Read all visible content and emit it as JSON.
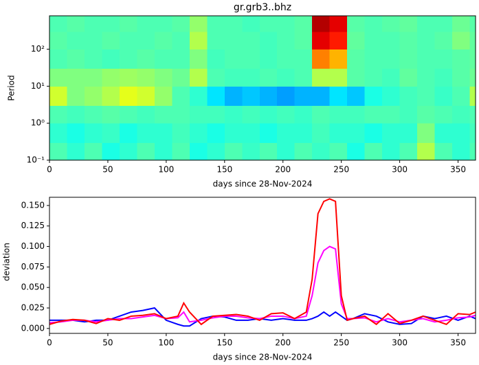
{
  "chart_data": [
    {
      "type": "heatmap",
      "title": "gr.grb3..bhz",
      "xlabel": "days since 28-Nov-2024",
      "ylabel": "Period",
      "colormap": "jet",
      "ylog": true,
      "x": [
        0,
        15,
        30,
        45,
        60,
        75,
        90,
        105,
        120,
        135,
        150,
        165,
        180,
        195,
        210,
        225,
        240,
        255,
        270,
        285,
        300,
        315,
        330,
        345,
        360,
        365
      ],
      "y": [
        0.1,
        0.3,
        1,
        3,
        10,
        30,
        100,
        300,
        800
      ],
      "values": [
        [
          0.45,
          0.42,
          0.45,
          0.4,
          0.42,
          0.45,
          0.42,
          0.45,
          0.4,
          0.42,
          0.45,
          0.43,
          0.45,
          0.42,
          0.45,
          0.43,
          0.45,
          0.4,
          0.45,
          0.42,
          0.45,
          0.55,
          0.45,
          0.42,
          0.45
        ],
        [
          0.42,
          0.4,
          0.42,
          0.43,
          0.4,
          0.42,
          0.42,
          0.44,
          0.42,
          0.4,
          0.42,
          0.42,
          0.4,
          0.42,
          0.42,
          0.44,
          0.42,
          0.42,
          0.4,
          0.42,
          0.42,
          0.5,
          0.42,
          0.42,
          0.44
        ],
        [
          0.45,
          0.44,
          0.45,
          0.46,
          0.45,
          0.44,
          0.45,
          0.45,
          0.44,
          0.44,
          0.43,
          0.44,
          0.43,
          0.44,
          0.43,
          0.45,
          0.44,
          0.44,
          0.45,
          0.45,
          0.44,
          0.46,
          0.45,
          0.44,
          0.45
        ],
        [
          0.58,
          0.5,
          0.52,
          0.55,
          0.6,
          0.58,
          0.52,
          0.45,
          0.42,
          0.35,
          0.3,
          0.32,
          0.3,
          0.28,
          0.3,
          0.3,
          0.35,
          0.32,
          0.4,
          0.42,
          0.44,
          0.45,
          0.43,
          0.45,
          0.55
        ],
        [
          0.5,
          0.5,
          0.5,
          0.52,
          0.53,
          0.52,
          0.5,
          0.48,
          0.55,
          0.45,
          0.44,
          0.44,
          0.45,
          0.44,
          0.45,
          0.55,
          0.55,
          0.46,
          0.45,
          0.44,
          0.47,
          0.45,
          0.44,
          0.46,
          0.48
        ],
        [
          0.45,
          0.46,
          0.45,
          0.44,
          0.45,
          0.46,
          0.45,
          0.45,
          0.5,
          0.44,
          0.45,
          0.45,
          0.44,
          0.45,
          0.45,
          0.75,
          0.7,
          0.46,
          0.45,
          0.45,
          0.46,
          0.45,
          0.45,
          0.46,
          0.47
        ],
        [
          0.46,
          0.45,
          0.45,
          0.46,
          0.45,
          0.45,
          0.46,
          0.45,
          0.55,
          0.45,
          0.45,
          0.45,
          0.44,
          0.45,
          0.46,
          0.9,
          0.85,
          0.47,
          0.45,
          0.45,
          0.46,
          0.45,
          0.46,
          0.5,
          0.47
        ],
        [
          0.45,
          0.46,
          0.45,
          0.45,
          0.46,
          0.45,
          0.45,
          0.46,
          0.52,
          0.45,
          0.45,
          0.44,
          0.45,
          0.45,
          0.46,
          0.95,
          0.9,
          0.46,
          0.45,
          0.46,
          0.47,
          0.45,
          0.45,
          0.48,
          0.46
        ]
      ],
      "xlim": [
        0,
        365
      ],
      "xticks": [
        0,
        50,
        100,
        150,
        200,
        250,
        300,
        350
      ],
      "ylim": [
        0.1,
        800
      ],
      "yticks": [
        {
          "value": 0.1,
          "label": "10⁻¹"
        },
        {
          "value": 1,
          "label": "10⁰"
        },
        {
          "value": 10,
          "label": "10¹"
        },
        {
          "value": 100,
          "label": "10²"
        }
      ]
    },
    {
      "type": "line",
      "xlabel": "days since 28-Nov-2024",
      "ylabel": "deviation",
      "x": [
        0,
        10,
        20,
        30,
        40,
        50,
        60,
        70,
        80,
        90,
        100,
        110,
        115,
        120,
        130,
        140,
        150,
        160,
        170,
        180,
        190,
        200,
        210,
        220,
        225,
        230,
        235,
        240,
        245,
        250,
        255,
        260,
        270,
        280,
        290,
        300,
        310,
        320,
        330,
        340,
        350,
        360,
        365
      ],
      "series": [
        {
          "color": "#0000ff",
          "values": [
            0.01,
            0.01,
            0.01,
            0.008,
            0.01,
            0.01,
            0.015,
            0.02,
            0.022,
            0.025,
            0.01,
            0.005,
            0.003,
            0.003,
            0.012,
            0.015,
            0.014,
            0.01,
            0.01,
            0.012,
            0.01,
            0.012,
            0.01,
            0.01,
            0.012,
            0.015,
            0.02,
            0.015,
            0.02,
            0.015,
            0.01,
            0.012,
            0.018,
            0.015,
            0.008,
            0.005,
            0.006,
            0.015,
            0.012,
            0.015,
            0.01,
            0.015,
            0.012
          ]
        },
        {
          "color": "#ff00ff",
          "values": [
            0.007,
            0.008,
            0.01,
            0.01,
            0.008,
            0.01,
            0.012,
            0.012,
            0.014,
            0.016,
            0.012,
            0.013,
            0.02,
            0.008,
            0.01,
            0.013,
            0.015,
            0.015,
            0.013,
            0.012,
            0.015,
            0.015,
            0.012,
            0.015,
            0.04,
            0.08,
            0.095,
            0.1,
            0.097,
            0.03,
            0.012,
            0.012,
            0.013,
            0.008,
            0.012,
            0.008,
            0.01,
            0.012,
            0.008,
            0.01,
            0.013,
            0.014,
            0.016
          ]
        },
        {
          "color": "#ff0000",
          "values": [
            0.005,
            0.009,
            0.011,
            0.01,
            0.006,
            0.012,
            0.01,
            0.015,
            0.016,
            0.018,
            0.012,
            0.015,
            0.031,
            0.02,
            0.005,
            0.015,
            0.016,
            0.017,
            0.015,
            0.01,
            0.018,
            0.019,
            0.012,
            0.02,
            0.06,
            0.14,
            0.155,
            0.158,
            0.155,
            0.04,
            0.01,
            0.012,
            0.015,
            0.005,
            0.018,
            0.006,
            0.01,
            0.015,
            0.01,
            0.005,
            0.018,
            0.017,
            0.02
          ]
        }
      ],
      "xlim": [
        0,
        365
      ],
      "xticks": [
        0,
        50,
        100,
        150,
        200,
        250,
        300,
        350
      ],
      "ylim": [
        -0.006,
        0.16
      ],
      "yticks": [
        {
          "value": 0,
          "label": "0.000"
        },
        {
          "value": 0.025,
          "label": "0.025"
        },
        {
          "value": 0.05,
          "label": "0.050"
        },
        {
          "value": 0.075,
          "label": "0.075"
        },
        {
          "value": 0.1,
          "label": "0.100"
        },
        {
          "value": 0.125,
          "label": "0.125"
        },
        {
          "value": 0.15,
          "label": "0.150"
        }
      ]
    }
  ]
}
